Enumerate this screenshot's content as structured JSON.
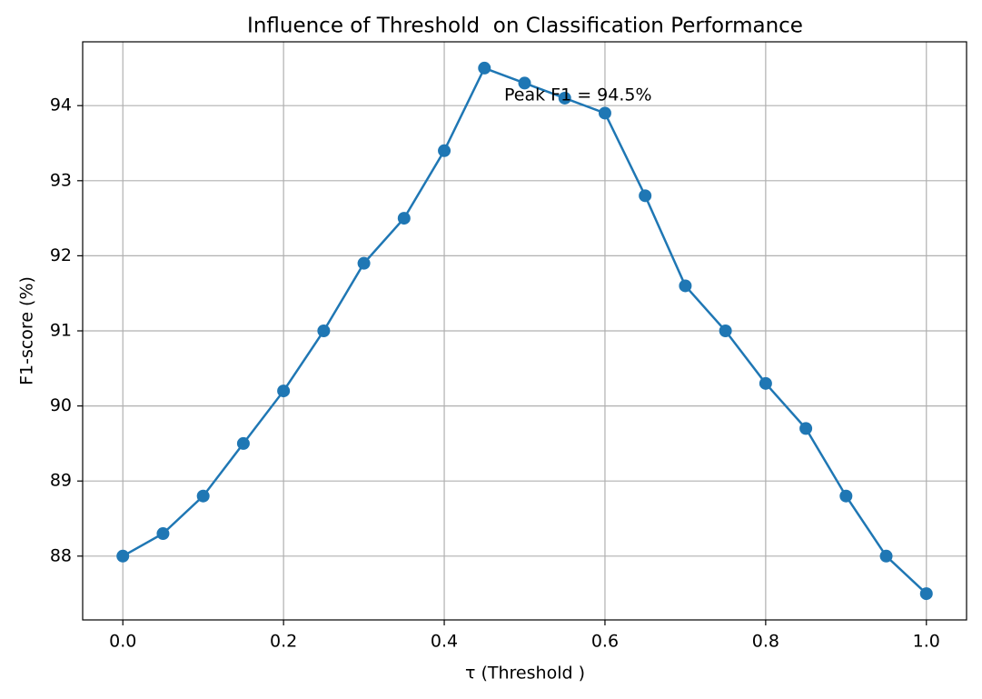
{
  "chart_data": {
    "type": "line",
    "title": "Influence of Threshold  on Classification Performance",
    "xlabel": "τ (Threshold )",
    "ylabel": "F1-score (%)",
    "x": [
      0.0,
      0.05,
      0.1,
      0.15,
      0.2,
      0.25,
      0.3,
      0.35,
      0.4,
      0.45,
      0.5,
      0.55,
      0.6,
      0.65,
      0.7,
      0.75,
      0.8,
      0.85,
      0.9,
      0.95,
      1.0
    ],
    "series": [
      {
        "name": "F1-score",
        "color": "#1f77b4",
        "values": [
          88.0,
          88.3,
          88.8,
          89.5,
          90.2,
          91.0,
          91.9,
          92.5,
          93.4,
          94.5,
          94.3,
          94.1,
          93.9,
          92.8,
          91.6,
          91.0,
          90.3,
          89.7,
          88.8,
          88.0,
          87.5
        ]
      }
    ],
    "annotation": "Peak F1 = 94.5%",
    "xlim": [
      -0.05,
      1.05
    ],
    "ylim": [
      87.15,
      94.85
    ],
    "xticks": [
      {
        "value": 0,
        "label": "0.0"
      },
      0.2,
      0.4,
      0.6,
      0.8,
      {
        "value": 1,
        "label": "1.0"
      }
    ],
    "yticks": [
      88,
      89,
      90,
      91,
      92,
      93,
      94
    ],
    "grid": true
  }
}
